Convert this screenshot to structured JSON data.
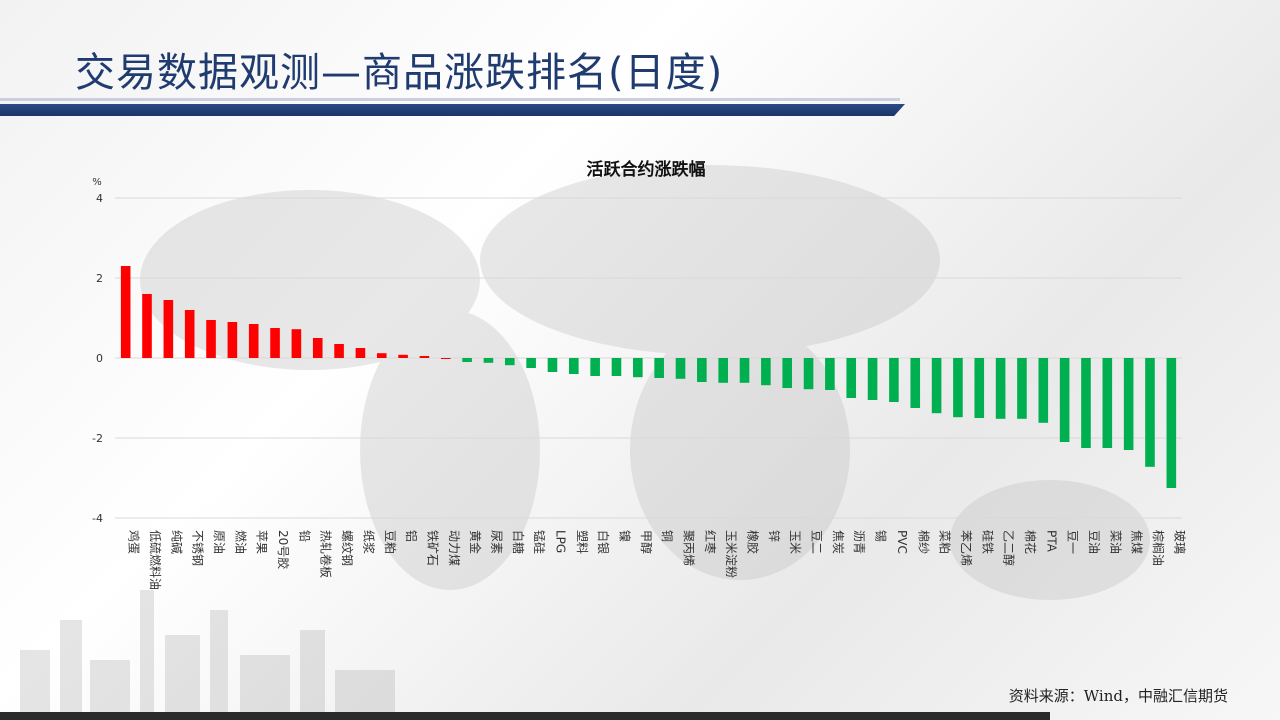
{
  "header": {
    "title": "交易数据观测—商品涨跌排名(日度)"
  },
  "source": "资料来源：Wind，中融汇信期货",
  "colors": {
    "positive": "#ff0000",
    "negative": "#00b050",
    "title": "#1f3b70"
  },
  "chart_data": {
    "type": "bar",
    "title": "活跃合约涨跌幅",
    "ylabel": "%",
    "ylim": [
      -4,
      4
    ],
    "yticks": [
      4,
      2,
      0,
      -2,
      -4
    ],
    "grid": true,
    "categories": [
      "鸡蛋",
      "低硫燃料油",
      "纯碱",
      "不锈钢",
      "原油",
      "燃油",
      "苹果",
      "20号胶",
      "铅",
      "热轧卷板",
      "螺纹钢",
      "纸浆",
      "豆粕",
      "铝",
      "铁矿石",
      "动力煤",
      "黄金",
      "尿素",
      "白糖",
      "锰硅",
      "LPG",
      "塑料",
      "白银",
      "镍",
      "甲醇",
      "铜",
      "聚丙烯",
      "红枣",
      "玉米淀粉",
      "橡胶",
      "锌",
      "玉米",
      "豆二",
      "焦炭",
      "沥青",
      "锡",
      "PVC",
      "棉纱",
      "菜粕",
      "苯乙烯",
      "硅铁",
      "乙二醇",
      "棉花",
      "PTA",
      "豆一",
      "豆油",
      "菜油",
      "焦煤",
      "棕榈油",
      "玻璃"
    ],
    "values": [
      2.3,
      1.6,
      1.45,
      1.2,
      0.95,
      0.9,
      0.85,
      0.75,
      0.72,
      0.5,
      0.35,
      0.25,
      0.12,
      0.08,
      0.05,
      0.0,
      -0.1,
      -0.12,
      -0.18,
      -0.25,
      -0.35,
      -0.4,
      -0.45,
      -0.45,
      -0.48,
      -0.5,
      -0.52,
      -0.6,
      -0.62,
      -0.62,
      -0.68,
      -0.75,
      -0.78,
      -0.8,
      -1.0,
      -1.05,
      -1.1,
      -1.25,
      -1.38,
      -1.48,
      -1.5,
      -1.52,
      -1.52,
      -1.62,
      -2.1,
      -2.25,
      -2.25,
      -2.3,
      -2.72,
      -3.25
    ]
  }
}
